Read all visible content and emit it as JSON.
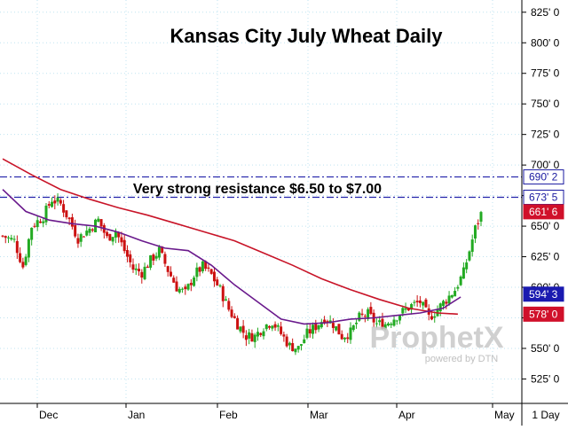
{
  "chart_data": {
    "type": "candlestick",
    "title": "Kansas City July Wheat Daily",
    "annotation": "Very strong resistance $6.50 to $7.00",
    "timeframe": "1 Day",
    "watermark": {
      "brand": "ProphetX",
      "tagline": "powered by DTN"
    },
    "y_axis": {
      "position": "right",
      "ylim": [
        505,
        835
      ],
      "ticks": [
        "825' 0",
        "800' 0",
        "775' 0",
        "750' 0",
        "725' 0",
        "700' 0",
        "675' 0",
        "650' 0",
        "625' 0",
        "600' 0",
        "575' 0",
        "550' 0",
        "525' 0"
      ],
      "tick_values": [
        825,
        800,
        775,
        750,
        725,
        700,
        675,
        650,
        625,
        600,
        575,
        550,
        525
      ]
    },
    "x_axis": {
      "labels": [
        "Dec",
        "Jan",
        "Feb",
        "Mar",
        "Apr",
        "May"
      ]
    },
    "price_tags": [
      {
        "label": "690' 2",
        "value": 690.25,
        "color": "#ffffff",
        "border": "#1a1aa0",
        "text_color": "#1a1aa0"
      },
      {
        "label": "673' 5",
        "value": 673.625,
        "color": "#ffffff",
        "border": "#1a1aa0",
        "text_color": "#1a1aa0"
      },
      {
        "label": "661' 6",
        "value": 661.75,
        "color": "#d0102a",
        "border": "#d0102a",
        "text_color": "#ffffff"
      },
      {
        "label": "594' 3",
        "value": 594.375,
        "color": "#1a1ab0",
        "border": "#1a1ab0",
        "text_color": "#ffffff"
      },
      {
        "label": "578' 0",
        "value": 578.0,
        "color": "#d0102a",
        "border": "#d0102a",
        "text_color": "#ffffff"
      }
    ],
    "resistance_lines": [
      690.25,
      673.625
    ],
    "series": [
      {
        "kind": "candles",
        "up_color": "#22aa22",
        "down_color": "#cc1111",
        "anchors": [
          [
            0,
            642
          ],
          [
            4,
            638
          ],
          [
            7,
            617
          ],
          [
            10,
            650
          ],
          [
            14,
            658
          ],
          [
            17,
            672
          ],
          [
            20,
            668
          ],
          [
            23,
            655
          ],
          [
            26,
            640
          ],
          [
            30,
            648
          ],
          [
            33,
            655
          ],
          [
            36,
            640
          ],
          [
            39,
            646
          ],
          [
            42,
            630
          ],
          [
            45,
            615
          ],
          [
            48,
            612
          ],
          [
            51,
            622
          ],
          [
            54,
            630
          ],
          [
            57,
            614
          ],
          [
            60,
            600
          ],
          [
            63,
            595
          ],
          [
            66,
            610
          ],
          [
            69,
            617
          ],
          [
            72,
            610
          ],
          [
            75,
            598
          ],
          [
            78,
            582
          ],
          [
            81,
            570
          ],
          [
            84,
            560
          ],
          [
            87,
            560
          ],
          [
            90,
            568
          ],
          [
            93,
            572
          ],
          [
            96,
            562
          ],
          [
            99,
            552
          ],
          [
            102,
            550
          ],
          [
            105,
            562
          ],
          [
            108,
            568
          ],
          [
            111,
            575
          ],
          [
            114,
            570
          ],
          [
            117,
            560
          ],
          [
            120,
            563
          ],
          [
            123,
            575
          ],
          [
            126,
            578
          ],
          [
            129,
            570
          ],
          [
            132,
            570
          ],
          [
            135,
            575
          ],
          [
            138,
            580
          ],
          [
            141,
            585
          ],
          [
            144,
            588
          ],
          [
            147,
            575
          ],
          [
            150,
            582
          ],
          [
            153,
            590
          ],
          [
            156,
            598
          ],
          [
            159,
            612
          ],
          [
            161,
            630
          ],
          [
            163,
            648
          ],
          [
            165,
            660
          ]
        ],
        "count": 166
      },
      {
        "name": "",
        "kind": "ma",
        "color": "#c81428",
        "points": [
          [
            0,
            705
          ],
          [
            10,
            692
          ],
          [
            20,
            680
          ],
          [
            30,
            672
          ],
          [
            40,
            665
          ],
          [
            50,
            659
          ],
          [
            60,
            652
          ],
          [
            70,
            645
          ],
          [
            80,
            638
          ],
          [
            90,
            628
          ],
          [
            100,
            618
          ],
          [
            110,
            607
          ],
          [
            120,
            598
          ],
          [
            130,
            590
          ],
          [
            140,
            583
          ],
          [
            150,
            579
          ],
          [
            157,
            578
          ]
        ]
      },
      {
        "name": "",
        "kind": "ma",
        "color": "#6a1a8c",
        "points": [
          [
            0,
            680
          ],
          [
            8,
            662
          ],
          [
            16,
            655
          ],
          [
            24,
            652
          ],
          [
            32,
            650
          ],
          [
            40,
            645
          ],
          [
            48,
            638
          ],
          [
            56,
            632
          ],
          [
            64,
            630
          ],
          [
            72,
            618
          ],
          [
            80,
            602
          ],
          [
            88,
            588
          ],
          [
            96,
            574
          ],
          [
            104,
            570
          ],
          [
            112,
            571
          ],
          [
            120,
            574
          ],
          [
            128,
            575
          ],
          [
            136,
            577
          ],
          [
            144,
            579
          ],
          [
            152,
            583
          ],
          [
            158,
            592
          ]
        ]
      }
    ]
  }
}
